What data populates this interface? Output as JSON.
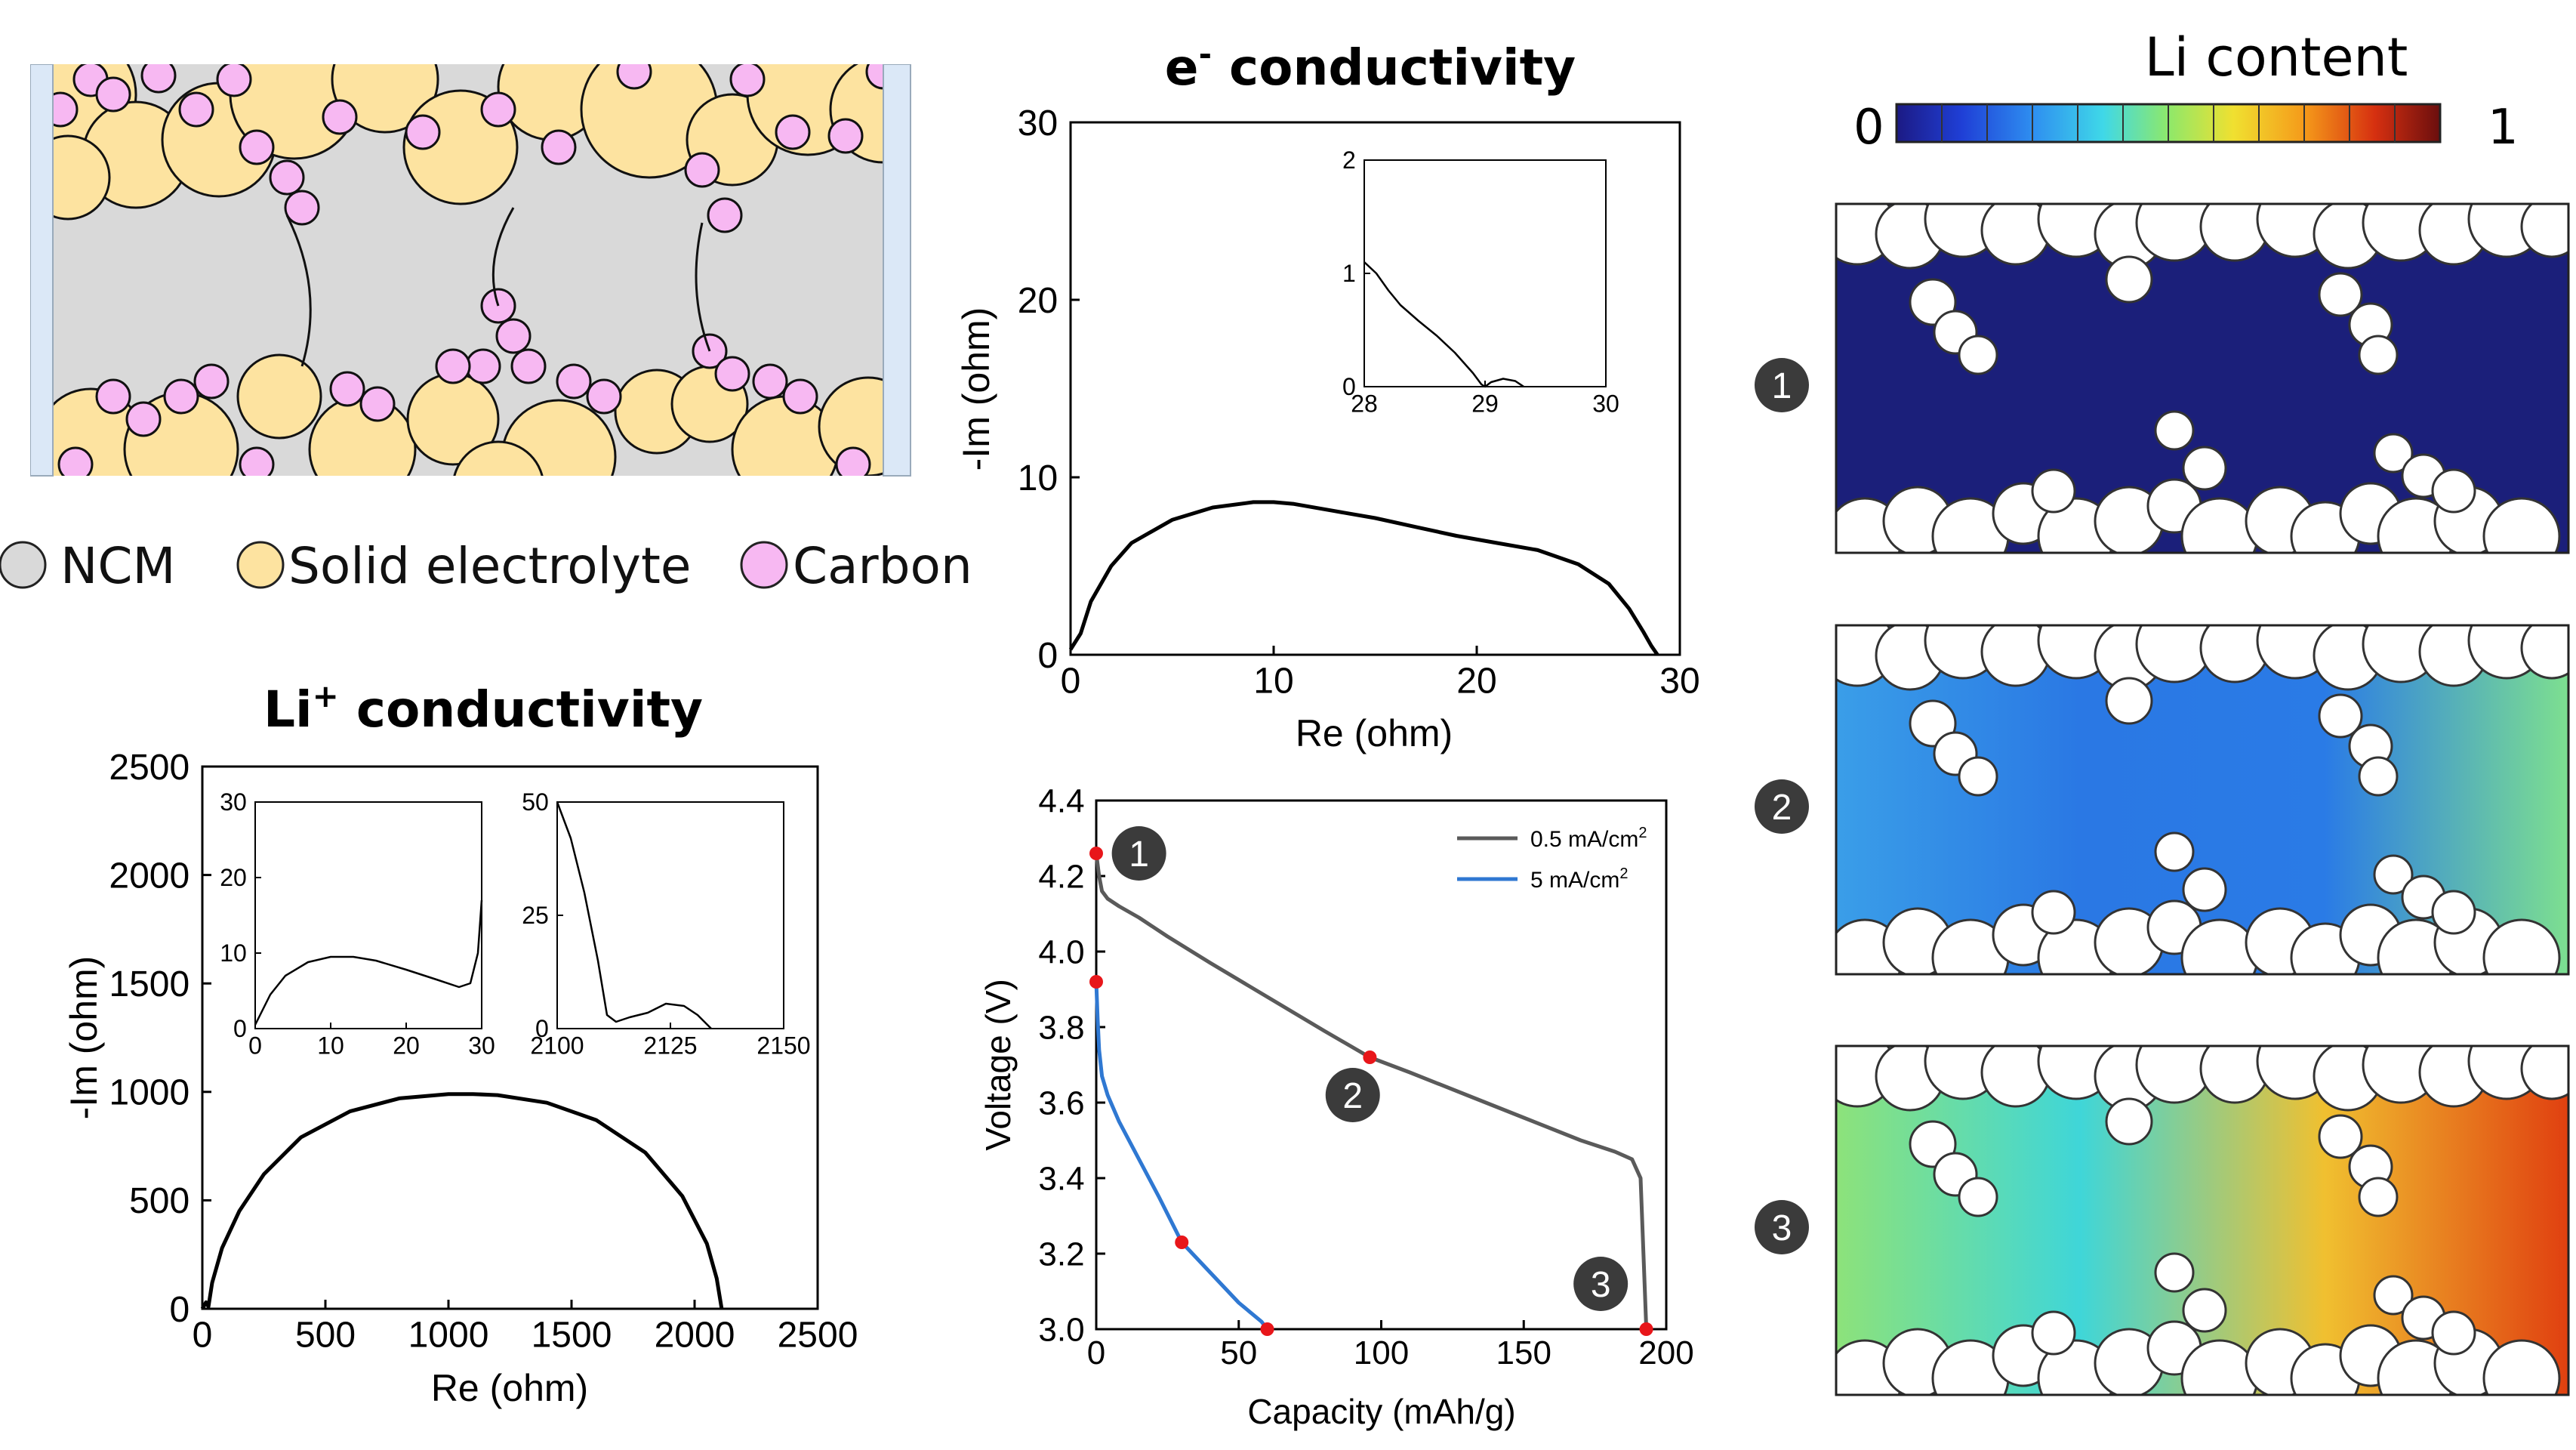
{
  "schematic": {
    "legend": [
      {
        "label": "NCM",
        "color": "#d9d9d9"
      },
      {
        "label": "Solid electrolyte",
        "color": "#fde3a0"
      },
      {
        "label": "Carbon",
        "color": "#f7b8f2"
      }
    ]
  },
  "colorbar": {
    "title": "Li content",
    "min_label": "0",
    "max_label": "1",
    "stops": [
      "#1c1a84",
      "#1f3fd6",
      "#2e8ef0",
      "#3fd8e8",
      "#8ee86a",
      "#f0e030",
      "#f59a1a",
      "#d63010",
      "#6a0e0e"
    ]
  },
  "maps": [
    {
      "marker": "1",
      "colors": [
        "#1b1f7a",
        "#1b1f7a",
        "#1b1f7a",
        "#1b1f7a"
      ]
    },
    {
      "marker": "2",
      "colors": [
        "#3a9ee8",
        "#2a78e4",
        "#2a7be6",
        "#7ddf90"
      ]
    },
    {
      "marker": "3",
      "colors": [
        "#8de27a",
        "#3fd6d8",
        "#f0c030",
        "#e04010"
      ]
    }
  ],
  "chart_data": [
    {
      "type": "line",
      "title_main": "Li",
      "title_sup": "+",
      "title_rest": " conductivity",
      "xlabel": "Re (ohm)",
      "ylabel": "-Im (ohm)",
      "xlim": [
        0,
        2500
      ],
      "ylim": [
        0,
        2500
      ],
      "xticks": [
        "0",
        "500",
        "1000",
        "1500",
        "2000",
        "2500"
      ],
      "yticks": [
        "0",
        "500",
        "1000",
        "1500",
        "2000",
        "2500"
      ],
      "series": [
        {
          "x": [
            0,
            15,
            25,
            40,
            80,
            150,
            250,
            400,
            600,
            800,
            1000,
            1100,
            1200,
            1400,
            1600,
            1800,
            1950,
            2050,
            2090,
            2110
          ],
          "y": [
            0,
            30,
            10,
            120,
            280,
            450,
            620,
            790,
            910,
            970,
            990,
            990,
            985,
            950,
            870,
            720,
            520,
            300,
            140,
            0
          ]
        }
      ],
      "insets": [
        {
          "xlim": [
            0,
            30
          ],
          "ylim": [
            0,
            30
          ],
          "xticks": [
            "0",
            "10",
            "20",
            "30"
          ],
          "yticks": [
            "0",
            "10",
            "20",
            "30"
          ],
          "x": [
            0,
            1,
            2,
            4,
            7,
            10,
            13,
            16,
            20,
            24,
            27,
            28.5,
            29.5,
            30
          ],
          "y": [
            0.5,
            2.5,
            4.5,
            7,
            8.8,
            9.5,
            9.5,
            9,
            7.8,
            6.5,
            5.5,
            6,
            10,
            17
          ]
        },
        {
          "xlim": [
            2100,
            2150
          ],
          "ylim": [
            0,
            50
          ],
          "xticks": [
            "2100",
            "2125",
            "2150"
          ],
          "yticks": [
            "0",
            "25",
            "50"
          ],
          "x": [
            2100,
            2103,
            2106,
            2109,
            2111,
            2113,
            2116,
            2120,
            2124,
            2128,
            2131,
            2133,
            2134
          ],
          "y": [
            50,
            42,
            30,
            15,
            3,
            1.5,
            2.5,
            3.5,
            5.5,
            5,
            3,
            1,
            0
          ]
        }
      ]
    },
    {
      "type": "line",
      "title_main": "e",
      "title_sup": "-",
      "title_rest": " conductivity",
      "xlabel": "Re (ohm)",
      "ylabel": "-Im (ohm)",
      "xlim": [
        0,
        30
      ],
      "ylim": [
        0,
        30
      ],
      "xticks": [
        "0",
        "10",
        "20",
        "30"
      ],
      "yticks": [
        "0",
        "10",
        "20",
        "30"
      ],
      "series": [
        {
          "x": [
            0,
            0.5,
            1,
            2,
            3,
            5,
            7,
            9,
            10,
            11,
            13,
            15,
            17,
            19,
            21,
            23,
            25,
            26.5,
            27.5,
            28.2,
            28.6,
            28.9
          ],
          "y": [
            0.3,
            1.2,
            3,
            5,
            6.3,
            7.6,
            8.3,
            8.6,
            8.6,
            8.5,
            8.1,
            7.7,
            7.2,
            6.7,
            6.3,
            5.9,
            5.1,
            4,
            2.6,
            1.3,
            0.5,
            0
          ]
        }
      ],
      "insets": [
        {
          "xlim": [
            28,
            30
          ],
          "ylim": [
            0,
            2
          ],
          "xticks": [
            "28",
            "29",
            "30"
          ],
          "yticks": [
            "0",
            "1",
            "2"
          ],
          "x": [
            28,
            28.1,
            28.2,
            28.3,
            28.45,
            28.6,
            28.75,
            28.9,
            28.97,
            29.0,
            29.05,
            29.15,
            29.25,
            29.32
          ],
          "y": [
            1.1,
            1.0,
            0.85,
            0.72,
            0.58,
            0.45,
            0.3,
            0.12,
            0.02,
            0.0,
            0.04,
            0.07,
            0.05,
            0.0
          ]
        }
      ]
    },
    {
      "type": "line",
      "xlabel": "Capacity (mAh/g)",
      "ylabel": "Voltage (V)",
      "xlim": [
        0,
        200
      ],
      "ylim": [
        3.0,
        4.4
      ],
      "xticks": [
        "0",
        "50",
        "100",
        "150",
        "200"
      ],
      "yticks": [
        "3.0",
        "3.2",
        "3.4",
        "3.6",
        "3.8",
        "4.0",
        "4.2",
        "4.4"
      ],
      "series": [
        {
          "name": "0.5 mA/cm",
          "name_sup": "2",
          "color": "#5a5a5a",
          "x": [
            0,
            1,
            2,
            4,
            8,
            15,
            25,
            40,
            60,
            80,
            96,
            110,
            130,
            150,
            170,
            182,
            188,
            191,
            192,
            193
          ],
          "y": [
            4.26,
            4.2,
            4.16,
            4.14,
            4.12,
            4.09,
            4.04,
            3.97,
            3.88,
            3.79,
            3.72,
            3.68,
            3.62,
            3.56,
            3.5,
            3.47,
            3.45,
            3.4,
            3.2,
            3.0
          ]
        },
        {
          "name": "5 mA/cm",
          "name_sup": "2",
          "color": "#2f78d2",
          "x": [
            0,
            0.5,
            1,
            2,
            4,
            8,
            15,
            22,
            30,
            40,
            50,
            58,
            60
          ],
          "y": [
            3.92,
            3.82,
            3.74,
            3.67,
            3.62,
            3.55,
            3.45,
            3.35,
            3.23,
            3.15,
            3.07,
            3.02,
            3.0
          ]
        }
      ],
      "points": [
        {
          "x": 0,
          "y": 4.26
        },
        {
          "x": 96,
          "y": 3.72
        },
        {
          "x": 193,
          "y": 3.0
        },
        {
          "x": 0,
          "y": 3.92
        },
        {
          "x": 30,
          "y": 3.23
        },
        {
          "x": 60,
          "y": 3.0
        }
      ],
      "markers": [
        {
          "label": "1",
          "x": 15,
          "y": 4.26
        },
        {
          "label": "2",
          "x": 90,
          "y": 3.62
        },
        {
          "label": "3",
          "x": 177,
          "y": 3.12
        }
      ]
    }
  ]
}
